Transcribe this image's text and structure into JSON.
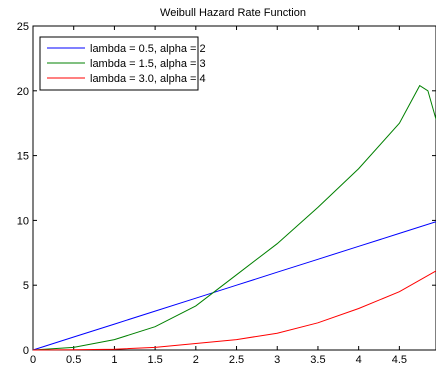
{
  "chart_data": {
    "type": "line",
    "title": "Weibull Hazard Rate Function",
    "xlabel": "",
    "ylabel": "",
    "xlim": [
      0,
      4.95
    ],
    "ylim": [
      0,
      25
    ],
    "x_ticks": [
      0,
      0.5,
      1,
      1.5,
      2,
      2.5,
      3,
      3.5,
      4,
      4.5
    ],
    "x_tick_labels": [
      "0",
      "0.5",
      "1",
      "1.5",
      "2",
      "2.5",
      "3",
      "3.5",
      "4",
      "4.5"
    ],
    "y_ticks": [
      0,
      5,
      10,
      15,
      20,
      25
    ],
    "y_tick_labels": [
      "0",
      "5",
      "10",
      "15",
      "20",
      "25"
    ],
    "grid": false,
    "legend_position": "top-left",
    "series": [
      {
        "name": "lambda = 0.5, alpha = 2",
        "color": "#0000ff",
        "x": [
          0,
          0.5,
          1,
          1.5,
          2,
          2.5,
          3,
          3.5,
          4,
          4.5,
          4.95
        ],
        "values": [
          0,
          1.0,
          2.0,
          3.0,
          4.0,
          5.0,
          6.0,
          7.0,
          8.0,
          9.0,
          9.9
        ]
      },
      {
        "name": "lambda = 1.5, alpha = 3",
        "color": "#008000",
        "x": [
          0,
          0.5,
          1,
          1.5,
          2,
          2.5,
          3,
          3.5,
          4,
          4.5,
          4.75,
          4.85,
          4.95
        ],
        "values": [
          0,
          0.2,
          0.8,
          1.8,
          3.4,
          5.8,
          8.2,
          11.0,
          14.0,
          17.5,
          20.4,
          20.0,
          17.8
        ]
      },
      {
        "name": "lambda = 3.0, alpha = 4",
        "color": "#ff0000",
        "x": [
          0,
          0.5,
          1,
          1.5,
          2,
          2.5,
          3,
          3.5,
          4,
          4.5,
          4.95
        ],
        "values": [
          0,
          0.02,
          0.06,
          0.2,
          0.5,
          0.8,
          1.3,
          2.1,
          3.2,
          4.5,
          6.1
        ]
      }
    ]
  }
}
